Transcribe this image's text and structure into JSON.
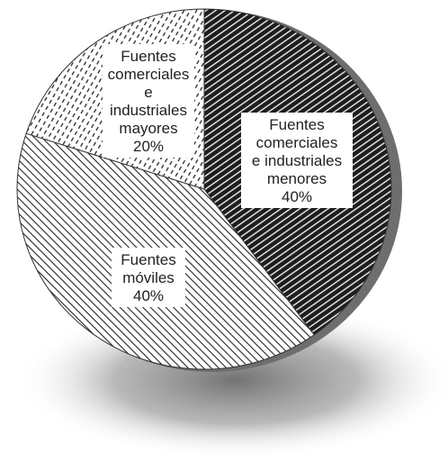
{
  "chart_data": {
    "type": "pie",
    "title": "",
    "slices": [
      {
        "label": [
          "Fuentes",
          "comerciales",
          "e industriales",
          "menores"
        ],
        "value": 40,
        "value_label": "40%"
      },
      {
        "label": [
          "Fuentes",
          "móviles"
        ],
        "value": 40,
        "value_label": "40%"
      },
      {
        "label": [
          "Fuentes",
          "comerciales",
          "e",
          "industriales",
          "mayores"
        ],
        "value": 20,
        "value_label": "20%"
      }
    ],
    "start_angle_deg": 0,
    "direction": "clockwise",
    "legend": "none",
    "colors": {
      "dark_slice": "#2a2a2a",
      "hatch": "#222222",
      "rim": "#6e6e6e",
      "background": "#ffffff"
    }
  }
}
